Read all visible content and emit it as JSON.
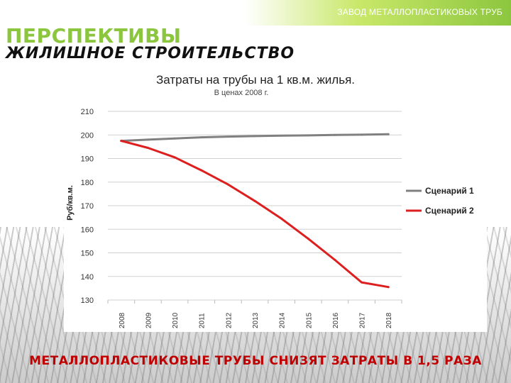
{
  "header": {
    "company": "ЗАВОД МЕТАЛЛОПЛАСТИКОВЫХ ТРУБ",
    "section_title": "ПЕРСПЕКТИВЫ",
    "subtitle": "ЖИЛИШНОЕ СТРОИТЕЛЬСТВО"
  },
  "colors": {
    "accent_green": "#8cc63f",
    "scenario1": "#808080",
    "scenario2": "#dd1f1f",
    "footer_text": "#c00000"
  },
  "footer": {
    "text": "МЕТАЛЛОПЛАСТИКОВЫЕ ТРУБЫ СНИЗЯТ ЗАТРАТЫ В 1,5 РАЗА"
  },
  "chart_data": {
    "type": "line",
    "title": "Затраты на трубы на 1 кв.м. жилья.",
    "subtitle": "В ценах 2008 г.",
    "xlabel": "",
    "ylabel": "Руб/кв.м.",
    "ylim": [
      130,
      210
    ],
    "yticks": [
      130,
      140,
      150,
      160,
      170,
      180,
      190,
      200,
      210
    ],
    "x": [
      "2008",
      "2009",
      "2010",
      "2011",
      "2012",
      "2013",
      "2014",
      "2015",
      "2016",
      "2017",
      "2018"
    ],
    "series": [
      {
        "name": "Сценарий 1",
        "color": "#808080",
        "values": [
          197.5,
          198.0,
          198.5,
          199.0,
          199.3,
          199.5,
          199.7,
          199.8,
          200.0,
          200.1,
          200.3
        ]
      },
      {
        "name": "Сценарий 2",
        "color": "#dd1f1f",
        "values": [
          197.5,
          194.5,
          190.5,
          185.0,
          179.0,
          172.0,
          164.5,
          156.0,
          147.0,
          137.5,
          135.5
        ]
      }
    ],
    "grid": "horizontal",
    "legend": "right"
  }
}
